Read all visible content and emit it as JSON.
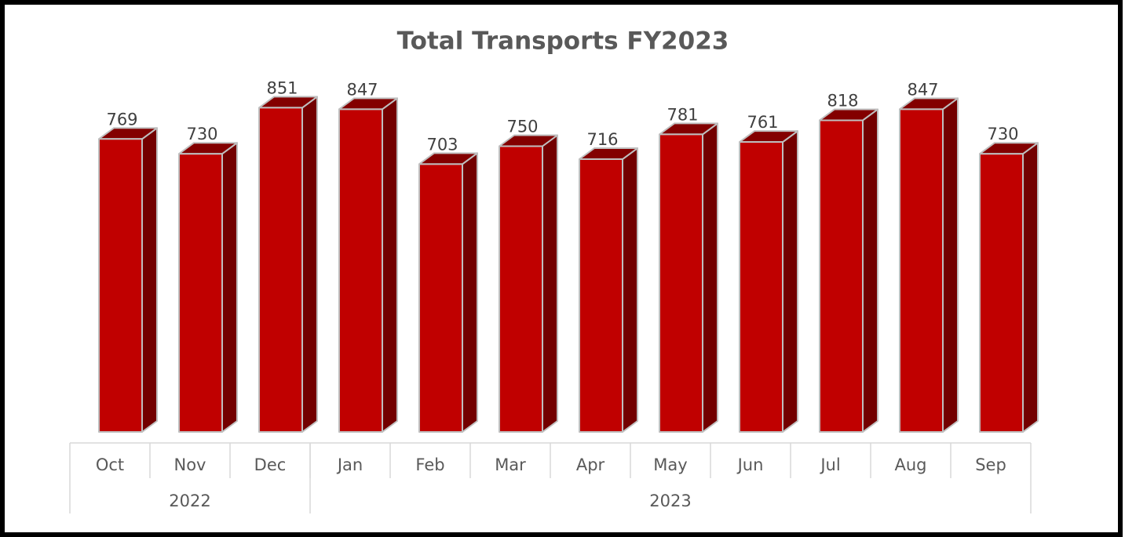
{
  "chart_data": {
    "type": "bar3d",
    "title": "Total Transports FY2023",
    "categories": [
      "Oct",
      "Nov",
      "Dec",
      "Jan",
      "Feb",
      "Mar",
      "Apr",
      "May",
      "Jun",
      "Jul",
      "Aug",
      "Sep"
    ],
    "groups": [
      {
        "label": "2022",
        "count": 3
      },
      {
        "label": "2023",
        "count": 9
      }
    ],
    "values": [
      769,
      730,
      851,
      847,
      703,
      750,
      716,
      781,
      761,
      818,
      847,
      730
    ],
    "ylim": [
      0,
      1000
    ],
    "color": "#c00000"
  }
}
